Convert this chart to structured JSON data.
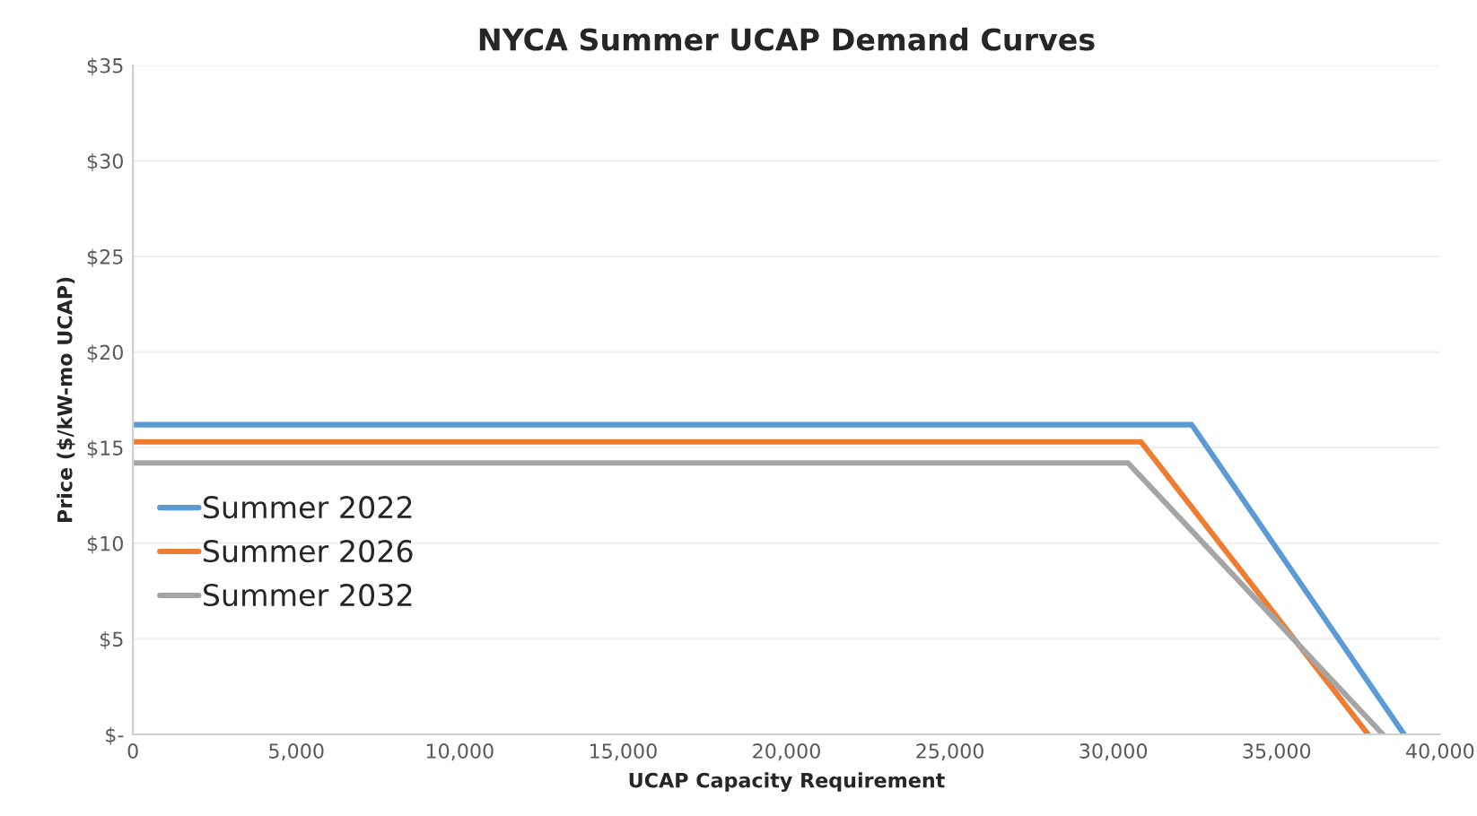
{
  "chart_data": {
    "type": "line",
    "title": "NYCA Summer UCAP Demand Curves",
    "xlabel": "UCAP Capacity Requirement",
    "ylabel": "Price ($/kW-mo UCAP)",
    "series": [
      {
        "name": "Summer 2022",
        "color": "#5b9bd5",
        "x": [
          0,
          32400,
          38900
        ],
        "values": [
          16.2,
          16.2,
          0
        ]
      },
      {
        "name": "Summer 2026",
        "color": "#ed7d31",
        "x": [
          0,
          30850,
          37800
        ],
        "values": [
          15.3,
          15.3,
          0
        ]
      },
      {
        "name": "Summer 2032",
        "color": "#a5a5a5",
        "x": [
          0,
          30450,
          38250
        ],
        "values": [
          14.2,
          14.2,
          0
        ]
      }
    ],
    "xlim": [
      0,
      40000
    ],
    "xticks": [
      {
        "value": 0,
        "label": "0"
      },
      {
        "value": 5000,
        "label": "5,000"
      },
      {
        "value": 10000,
        "label": "10,000"
      },
      {
        "value": 15000,
        "label": "15,000"
      },
      {
        "value": 20000,
        "label": "20,000"
      },
      {
        "value": 25000,
        "label": "25,000"
      },
      {
        "value": 30000,
        "label": "30,000"
      },
      {
        "value": 35000,
        "label": "35,000"
      },
      {
        "value": 40000,
        "label": "40,000"
      }
    ],
    "ylim": [
      0,
      35
    ],
    "yticks": [
      {
        "value": 0,
        "label": "$-"
      },
      {
        "value": 5,
        "label": "$5"
      },
      {
        "value": 10,
        "label": "$10"
      },
      {
        "value": 15,
        "label": "$15"
      },
      {
        "value": 20,
        "label": "$20"
      },
      {
        "value": 25,
        "label": "$25"
      },
      {
        "value": 30,
        "label": "$30"
      },
      {
        "value": 35,
        "label": "$35"
      }
    ],
    "grid": "y",
    "legend": "left",
    "marker": "none",
    "line_style": "solid"
  }
}
